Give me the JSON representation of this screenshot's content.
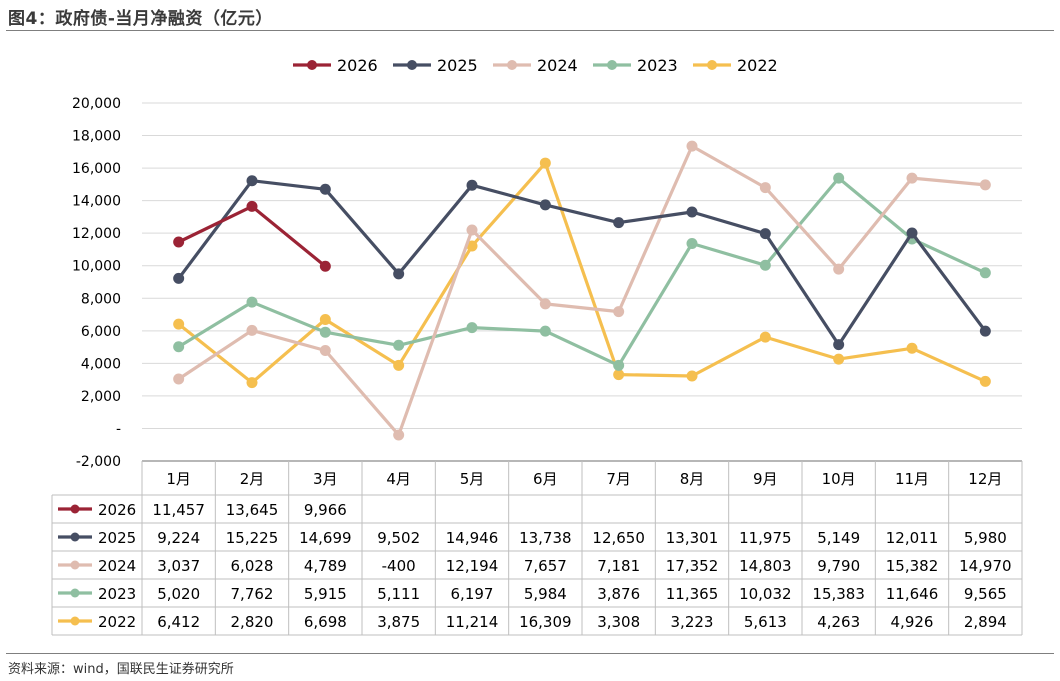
{
  "header": {
    "title": "图4：政府债-当月净融资（亿元）"
  },
  "footer": {
    "source": "资料来源：wind，国联民生证券研究所"
  },
  "chart_data": {
    "type": "line",
    "categories": [
      "1月",
      "2月",
      "3月",
      "4月",
      "5月",
      "6月",
      "7月",
      "8月",
      "9月",
      "10月",
      "11月",
      "12月"
    ],
    "ylim": [
      -2000,
      20000
    ],
    "yticks": [
      -2000,
      0,
      2000,
      4000,
      6000,
      8000,
      10000,
      12000,
      14000,
      16000,
      18000,
      20000
    ],
    "ytick_labels": [
      "-2,000",
      "-",
      "2,000",
      "4,000",
      "6,000",
      "8,000",
      "10,000",
      "12,000",
      "14,000",
      "16,000",
      "18,000",
      "20,000"
    ],
    "grid": true,
    "legend_position": "top-center",
    "series": [
      {
        "name": "2026",
        "color": "#9b2335",
        "values": [
          11457,
          13645,
          9966,
          null,
          null,
          null,
          null,
          null,
          null,
          null,
          null,
          null
        ],
        "labels": [
          "11,457",
          "13,645",
          "9,966",
          "",
          "",
          "",
          "",
          "",
          "",
          "",
          "",
          ""
        ]
      },
      {
        "name": "2025",
        "color": "#464e63",
        "values": [
          9224,
          15225,
          14699,
          9502,
          14946,
          13738,
          12650,
          13301,
          11975,
          5149,
          12011,
          5980
        ],
        "labels": [
          "9,224",
          "15,225",
          "14,699",
          "9,502",
          "14,946",
          "13,738",
          "12,650",
          "13,301",
          "11,975",
          "5,149",
          "12,011",
          "5,980"
        ]
      },
      {
        "name": "2024",
        "color": "#dfbcb0",
        "values": [
          3037,
          6028,
          4789,
          -400,
          12194,
          7657,
          7181,
          17352,
          14803,
          9790,
          15382,
          14970
        ],
        "labels": [
          "3,037",
          "6,028",
          "4,789",
          "-400",
          "12,194",
          "7,657",
          "7,181",
          "17,352",
          "14,803",
          "9,790",
          "15,382",
          "14,970"
        ]
      },
      {
        "name": "2023",
        "color": "#8fbfa1",
        "values": [
          5020,
          7762,
          5915,
          5111,
          6197,
          5984,
          3876,
          11365,
          10032,
          15383,
          11646,
          9565
        ],
        "labels": [
          "5,020",
          "7,762",
          "5,915",
          "5,111",
          "6,197",
          "5,984",
          "3,876",
          "11,365",
          "10,032",
          "15,383",
          "11,646",
          "9,565"
        ]
      },
      {
        "name": "2022",
        "color": "#f5bf4f",
        "values": [
          6412,
          2820,
          6698,
          3875,
          11214,
          16309,
          3308,
          3223,
          5613,
          4263,
          4926,
          2894
        ],
        "labels": [
          "6,412",
          "2,820",
          "6,698",
          "3,875",
          "11,214",
          "16,309",
          "3,308",
          "3,223",
          "5,613",
          "4,263",
          "4,926",
          "2,894"
        ]
      }
    ]
  }
}
